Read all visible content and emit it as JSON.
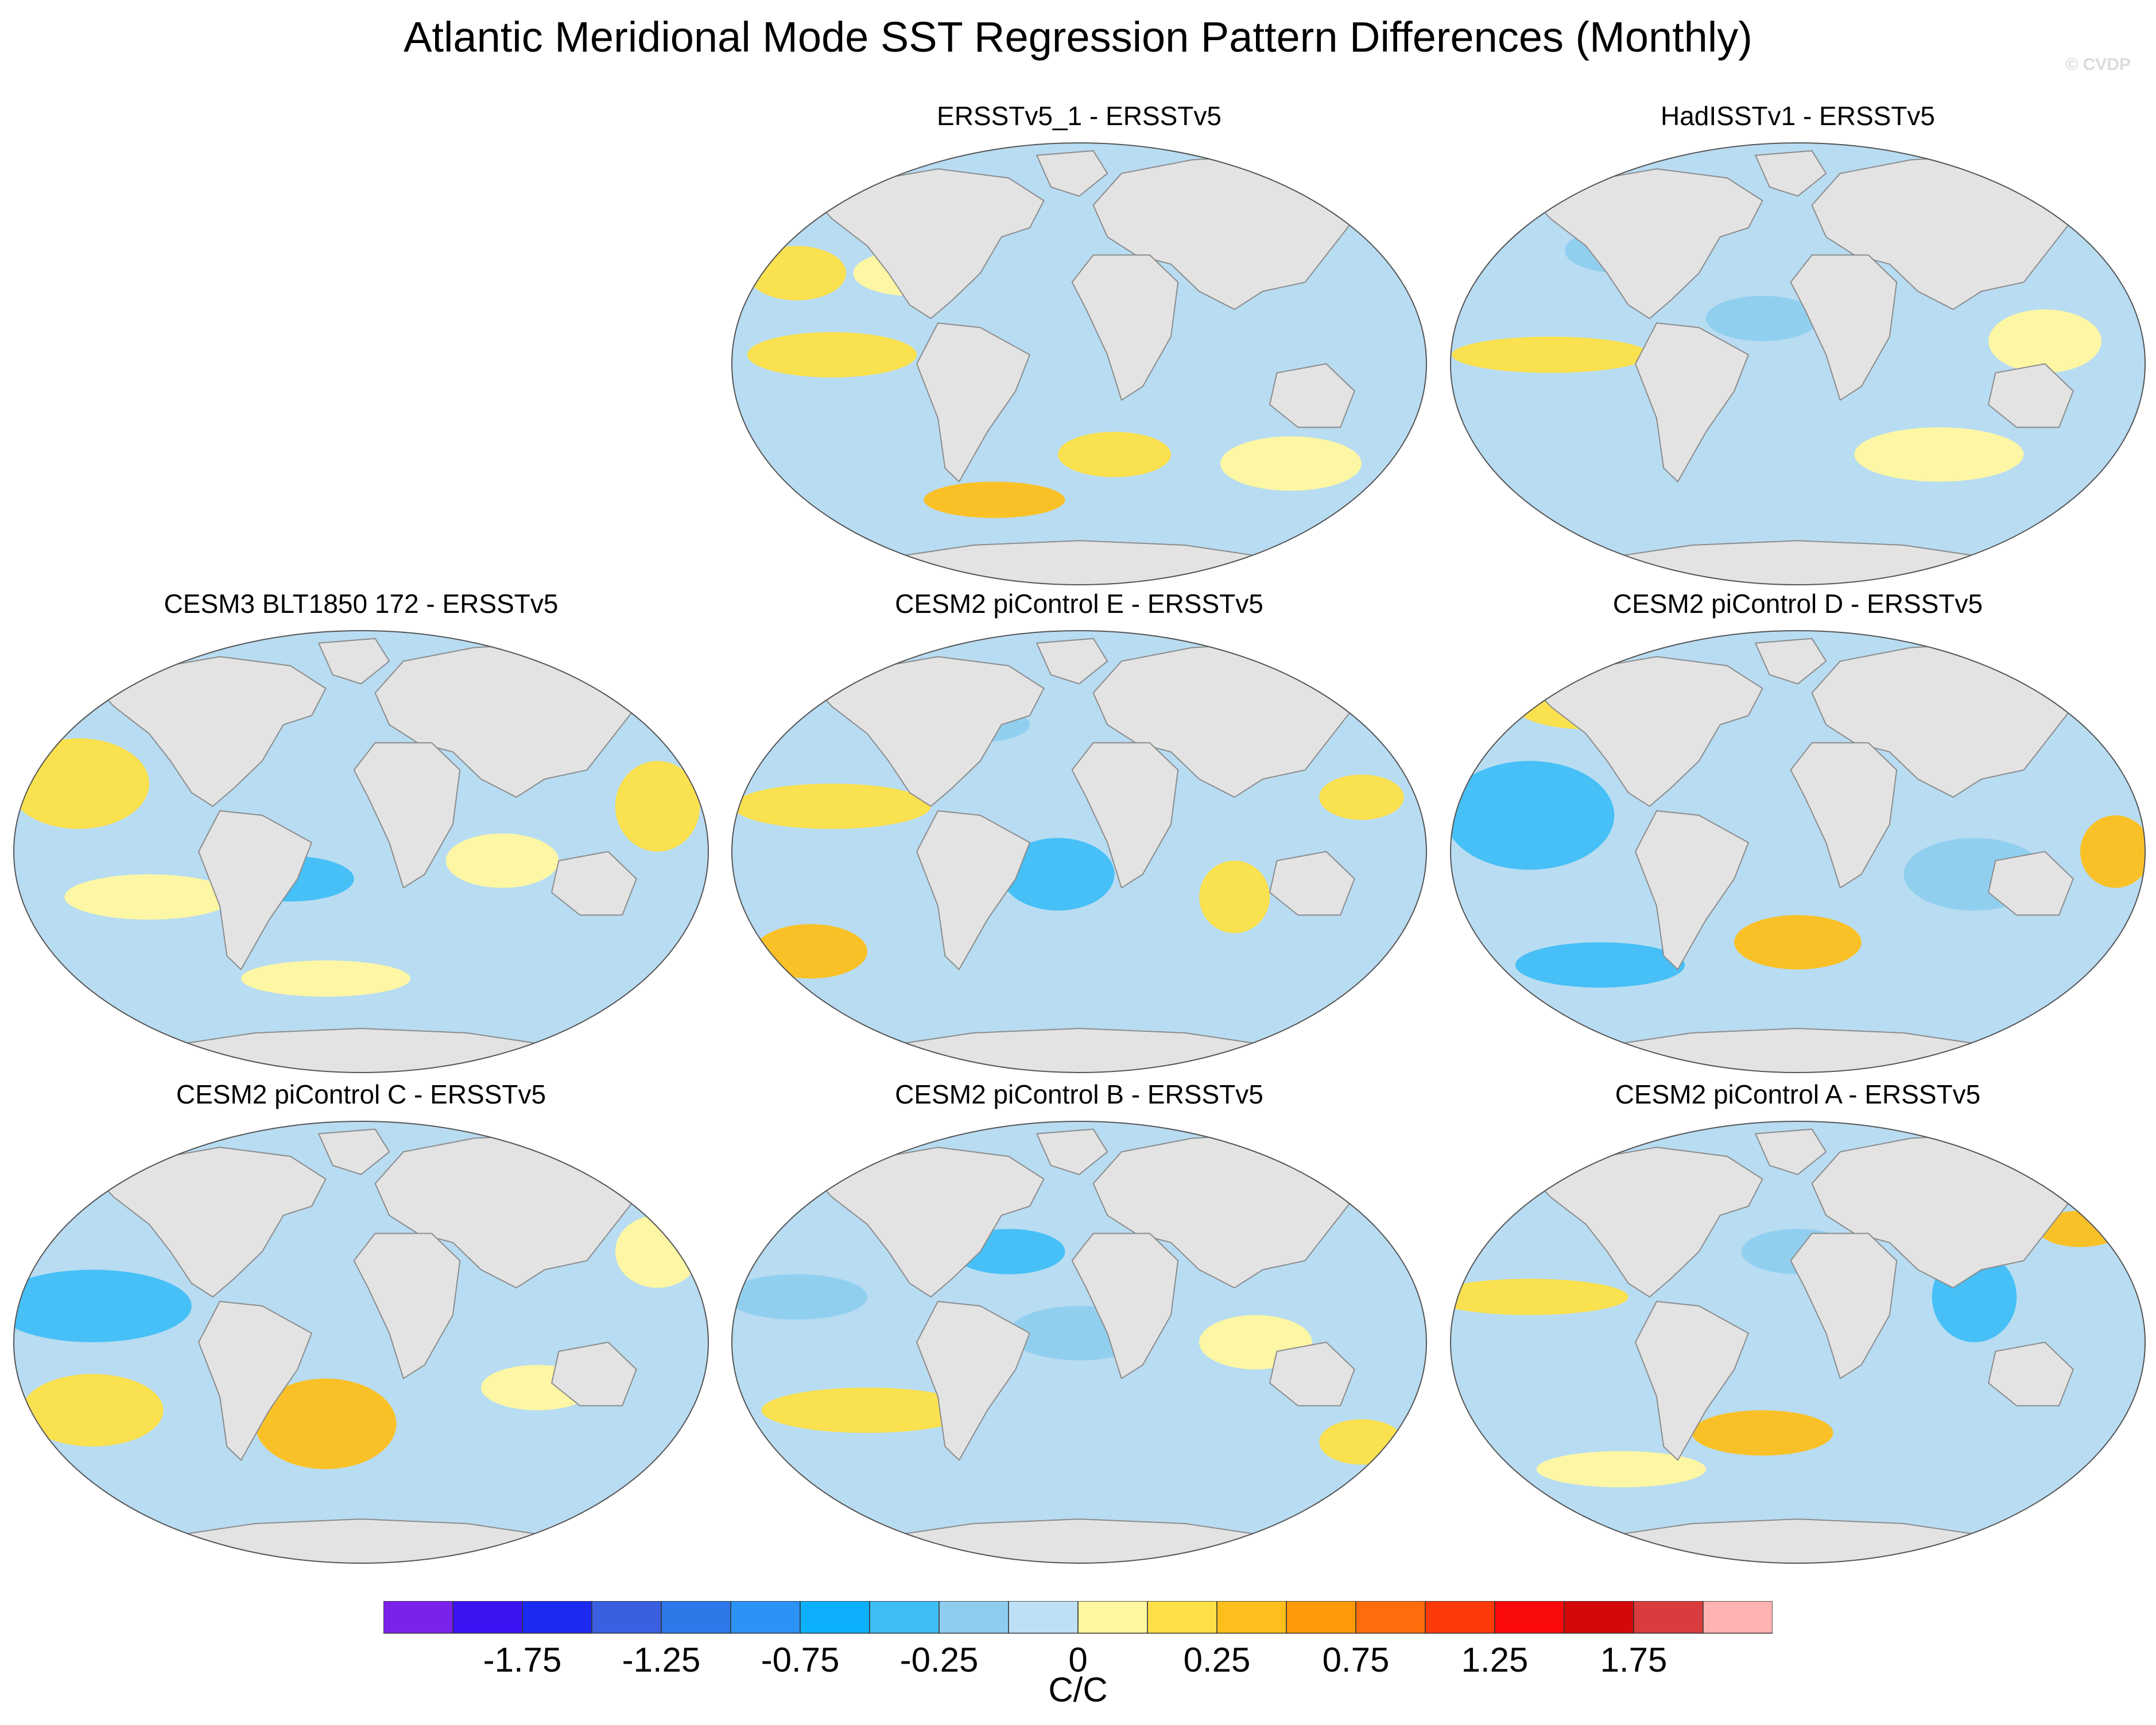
{
  "title": "Atlantic Meridional Mode SST Regression Pattern Differences (Monthly)",
  "watermark": "© CVDP",
  "colors": {
    "land": "#e3e3e3",
    "coast": "#8c8c8c",
    "ocean_base": "#b8dcf2"
  },
  "panels": [
    {
      "id": "p1",
      "title": "ERSSTv5_1 - ERSSTv5"
    },
    {
      "id": "p2",
      "title": "HadISSTv1 - ERSSTv5"
    },
    {
      "id": "p3",
      "title": "CESM3 BLT1850 172 - ERSSTv5"
    },
    {
      "id": "p4",
      "title": "CESM2 piControl E - ERSSTv5"
    },
    {
      "id": "p5",
      "title": "CESM2 piControl D - ERSSTv5"
    },
    {
      "id": "p6",
      "title": "CESM2 piControl C - ERSSTv5"
    },
    {
      "id": "p7",
      "title": "CESM2 piControl B - ERSSTv5"
    },
    {
      "id": "p8",
      "title": "CESM2 piControl A - ERSSTv5"
    }
  ],
  "colorbar": {
    "colors": [
      "#7b22ea",
      "#3b12f2",
      "#1a2af0",
      "#3a5fe0",
      "#2e78ea",
      "#2a93f5",
      "#0cb0fa",
      "#3fbef5",
      "#8ecdee",
      "#bde0f5",
      "#fff7a0",
      "#fde047",
      "#fcbf1b",
      "#fd9a08",
      "#fd6d0b",
      "#fd3a08",
      "#fa0a0a",
      "#d30808",
      "#d93c3c",
      "#ffb2b2"
    ],
    "labels": [
      "-1.75",
      "-1.25",
      "-0.75",
      "-0.25",
      "0",
      "0.25",
      "0.75",
      "1.25",
      "1.75"
    ],
    "units": "C/C"
  }
}
